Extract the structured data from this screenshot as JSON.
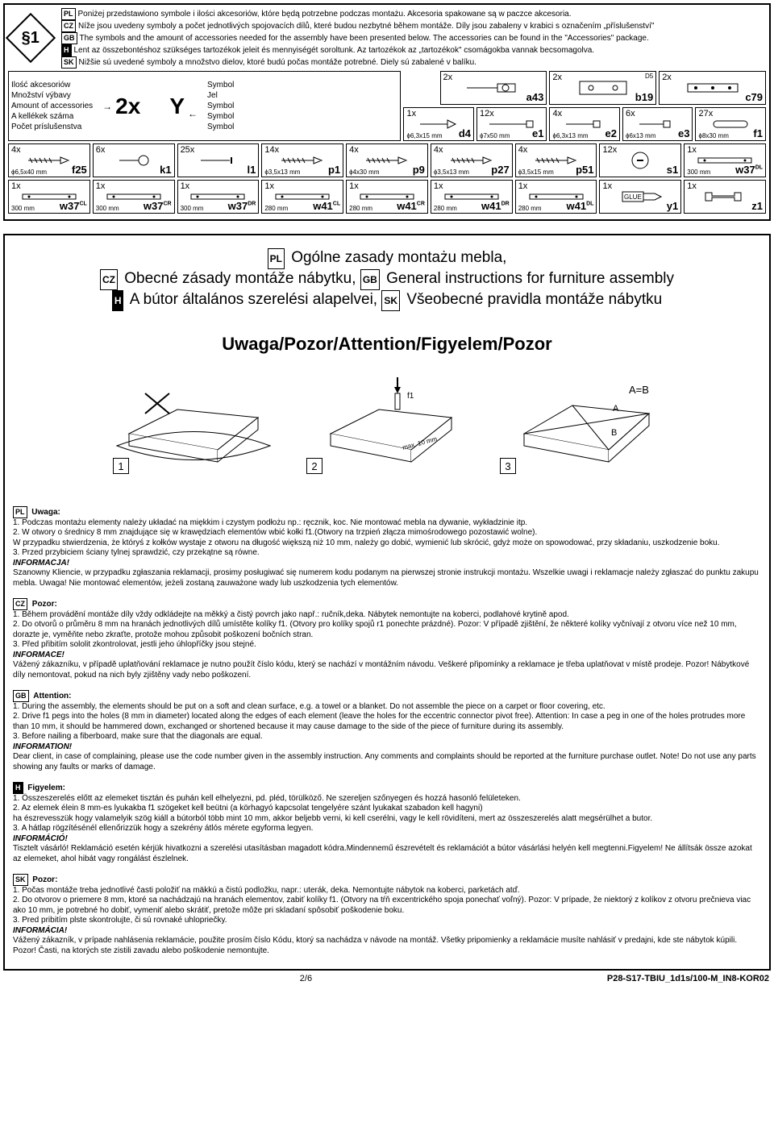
{
  "step_badge": "§1",
  "intro": {
    "pl": "Poniżej przedstawiono symbole i ilości akcesoriów, które będą potrzebne podczas montażu. Akcesoria spakowane są w paczce akcesoria.",
    "cz": "Níže jsou uvedeny symboly a počet jednotlivých spojovacích dílů, které budou nezbytné během montáže. Díly jsou zabaleny v krabici s označením „příslušenství\"",
    "gb": "The symbols and the amount of accessories needed for the assembly have been presented below. The accessories can be found in the \"Accessories\" package.",
    "h": "Lent az összebontéshoz szükséges tartozékok jeleit és mennyiségét soroltunk. Az tartozékok az „tartozékok\" csomágokba vannak becsomagolva.",
    "sk": "Nižšie sú uvedené symboly a množstvo dielov, ktoré budú počas montáže potrebné. Diely sú zabalené v balíku."
  },
  "legend_left": [
    "Ilość akcesoriów",
    "Množství výbavy",
    "Amount of accessories",
    "A kellékek száma",
    "Počet príslušenstva"
  ],
  "legend_right": [
    "Symbol",
    "Jel",
    "Symbol",
    "Symbol",
    "Symbol"
  ],
  "legend_sample_qty": "2x",
  "legend_sample_sym": "Y",
  "row1": [
    {
      "q": "2x",
      "code": "a43"
    },
    {
      "q": "2x",
      "code": "b19",
      "tr": "D5"
    },
    {
      "q": "2x",
      "code": "c79"
    }
  ],
  "row2": [
    {
      "q": "1x",
      "dim": "ϕ6,3x15 mm",
      "code": "d4"
    },
    {
      "q": "12x",
      "dim": "ϕ7x50 mm",
      "code": "e1"
    },
    {
      "q": "4x",
      "dim": "ϕ6,3x13 mm",
      "code": "e2"
    },
    {
      "q": "6x",
      "dim": "ϕ6x13 mm",
      "code": "e3"
    },
    {
      "q": "27x",
      "dim": "ϕ8x30 mm",
      "code": "f1"
    }
  ],
  "row3": [
    {
      "q": "4x",
      "dim": "ϕ6,5x40 mm",
      "code": "f25"
    },
    {
      "q": "6x",
      "dim": "",
      "code": "k1"
    },
    {
      "q": "25x",
      "dim": "",
      "code": "l1"
    },
    {
      "q": "14x",
      "dim": "ϕ3,5x13 mm",
      "code": "p1"
    },
    {
      "q": "4x",
      "dim": "ϕ4x30 mm",
      "code": "p9"
    },
    {
      "q": "4x",
      "dim": "ϕ3,5x13 mm",
      "code": "p27"
    },
    {
      "q": "4x",
      "dim": "ϕ3,5x15 mm",
      "code": "p51"
    },
    {
      "q": "12x",
      "dim": "",
      "code": "s1"
    },
    {
      "q": "1x",
      "dim": "300 mm",
      "code": "w37",
      "sup": "DL"
    }
  ],
  "row4": [
    {
      "q": "1x",
      "dim": "300 mm",
      "code": "w37",
      "sup": "CL"
    },
    {
      "q": "1x",
      "dim": "300 mm",
      "code": "w37",
      "sup": "CR"
    },
    {
      "q": "1x",
      "dim": "300 mm",
      "code": "w37",
      "sup": "DR"
    },
    {
      "q": "1x",
      "dim": "280 mm",
      "code": "w41",
      "sup": "CL"
    },
    {
      "q": "1x",
      "dim": "280 mm",
      "code": "w41",
      "sup": "CR"
    },
    {
      "q": "1x",
      "dim": "280 mm",
      "code": "w41",
      "sup": "DR"
    },
    {
      "q": "1x",
      "dim": "280 mm",
      "code": "w41",
      "sup": "DL"
    },
    {
      "q": "1x",
      "dim": "",
      "code": "y1",
      "icon": "glue"
    },
    {
      "q": "1x",
      "dim": "",
      "code": "z1"
    }
  ],
  "titles": {
    "pl": "Ogólne zasady montażu mebla,",
    "cz": "Obecné zásady montáže nábytku,",
    "gb": "General instructions for furniture assembly",
    "h": "A bútor általános szerelési alapelvei,",
    "sk": "Všeobecné pravidla montáže nábytku"
  },
  "warning_title": "Uwaga/Pozor/Attention/Figyelem/Pozor",
  "dg": {
    "l1": "f1",
    "l2": "max. 10 mm",
    "l3a": "A",
    "l3b": "B",
    "l3eq": "A=B",
    "n1": "1",
    "n2": "2",
    "n3": "3"
  },
  "blocks": {
    "pl": {
      "title": "Uwaga:",
      "body": "1. Podczas montażu elementy należy układać na miękkim i czystym podłożu np.: ręcznik, koc. Nie montować mebla na dywanie, wykładzinie itp.\n2. W otwory o średnicy 8 mm znajdujące się w krawędziach elementów wbić kołki f1.(Otwory na trzpień złącza mimośrodowego pozostawić wolne).\nW przypadku stwierdzenia, że któryś z kołków wystaje z otworu na długość większą niż 10 mm, należy go dobić, wymienić lub skrócić, gdyż może on spowodować, przy składaniu, uszkodzenie boku.\n3. Przed przybiciem ściany tylnej sprawdzić, czy przekątne są równe.",
      "info": "INFORMACJA!",
      "foot": "Szanowny Kliencie, w przypadku zgłaszania reklamacji, prosimy posługiwać się numerem kodu podanym na pierwszej stronie instrukcji montażu. Wszelkie uwagi i reklamacje należy zgłaszać do punktu zakupu mebla. Uwaga! Nie montować elementów, jeżeli zostaną zauważone wady lub uszkodzenia tych elementów."
    },
    "cz": {
      "title": "Pozor:",
      "body": "1. Během provádění montáže díly vždy odkládejte na měkký a čistý povrch jako např.: ručník,deka. Nábytek nemontujte na koberci, podlahové krytině apod.\n2. Do otvorů o průměru 8 mm na hranách jednotlivých dílů umístěte kolíky f1. (Otvory pro kolíky spojů r1 ponechte prázdné). Pozor: V případě zjištění, že některé kolíky vyčnívají z otvoru více než 10 mm, dorazte je, vyměňte nebo zkraťte, protože mohou způsobit poškození bočních stran.\n3. Před přibitím sololit zkontrolovat, jestli jeho úhlopříčky jsou stejné.",
      "info": "INFORMACE!",
      "foot": "Vážený zákazníku, v případě uplatňování reklamace je nutno použít číslo kódu, který se nachází v montážním návodu. Veškeré připomínky a reklamace je třeba uplatňovat v místě prodeje. Pozor! Nábytkové díly nemontovat, pokud na nich byly zjištěny vady nebo poškození."
    },
    "gb": {
      "title": "Attention:",
      "body": "1. During the assembly, the elements should be put on a soft and clean surface, e.g. a towel or a blanket. Do not assemble the piece on a carpet or floor covering, etc.\n2. Drive f1 pegs into the holes (8 mm in diameter) located along the edges of each element (leave the holes for the eccentric connector pivot free). Attention: In case a peg in one of the holes protrudes more than 10 mm, it should be hammered down, exchanged or shortened because it may cause damage to the side of the piece of furniture during its assembly.\n3. Before nailing a fiberboard, make sure that the diagonals are equal.",
      "info": "INFORMATION!",
      "foot": "Dear client, in case of complaining, please use the code number given in the assembly instruction. Any comments and complaints should be reported at the furniture purchase outlet. Note! Do not use any parts showing any faults or marks of damage."
    },
    "h": {
      "title": "Figyelem:",
      "body": "1. Összeszerelés előtt az elemeket tisztán és puhán kell elhelyezni, pd. pléd, törülköző. Ne szereljen szőnyegen és hozzá hasonló felületeken.\n2. Az elemek élein 8 mm-es lyukakba f1 szögeket kell beütni (a körhagyó kapcsolat tengelyére szánt lyukakat szabadon kell hagyni)\nha észrevesszük hogy valamelyik szög kiáll a bútorból több mint 10 mm, akkor beljebb verni, ki kell cserélni, vagy le kell rövidíteni, mert az összeszerelés alatt megsérülhet a butor.\n3. A hátlap rögzítésénél ellenőrizzük hogy a szekrény átlós mérete egyforma legyen.",
      "info": "INFORMÁCIÓ!",
      "foot": "Tisztelt vásárló! Reklamáció esetén kérjük hivatkozni a szerelési utasításban magadott kódra.Mindennemű észrevételt és reklamációt a bútor vásárlási helyén kell megtenni.Figyelem! Ne állítsák össze azokat az elemeket, ahol hibát vagy rongálást észlelnek."
    },
    "sk": {
      "title": "Pozor:",
      "body": "1. Počas montáže treba jednotlivé časti položiť na mäkkú a čistú podložku, napr.: uterák, deka. Nemontujte nábytok na koberci, parketách atď.\n2. Do otvorov o priemere 8 mm, ktoré sa nachádzajú na hranách elementov, zabiť kolíky f1. (Otvory na tŕň excentrického spoja ponechať voľný). Pozor: V prípade, že niektorý z kolíkov z otvoru prečnieva viac ako 10 mm, je potrebné ho dobiť, vymeniť alebo skrátiť, pretože môže pri skladaní spôsobiť poškodenie boku.\n3. Pred pribitím plste skontrolujte, či sú rovnaké uhlopriečky.",
      "info": "INFORMÁCIA!",
      "foot": "Vážený zákazník, v prípade nahlásenia reklamácie, použite prosím číslo Kódu, ktorý sa nachádza v návode na montáž. Všetky pripomienky a reklamácie musíte nahlásiť v predajni, kde ste nábytok kúpili. Pozor! Časti, na ktorých ste zistili zavadu alebo poškodenie nemontujte."
    }
  },
  "page": "2/6",
  "doccode": "P28-S17-TBIU_1d1s/100-M_IN8-KOR02",
  "lang_labels": {
    "pl": "PL",
    "cz": "CZ",
    "gb": "GB",
    "h": "H",
    "sk": "SK"
  }
}
